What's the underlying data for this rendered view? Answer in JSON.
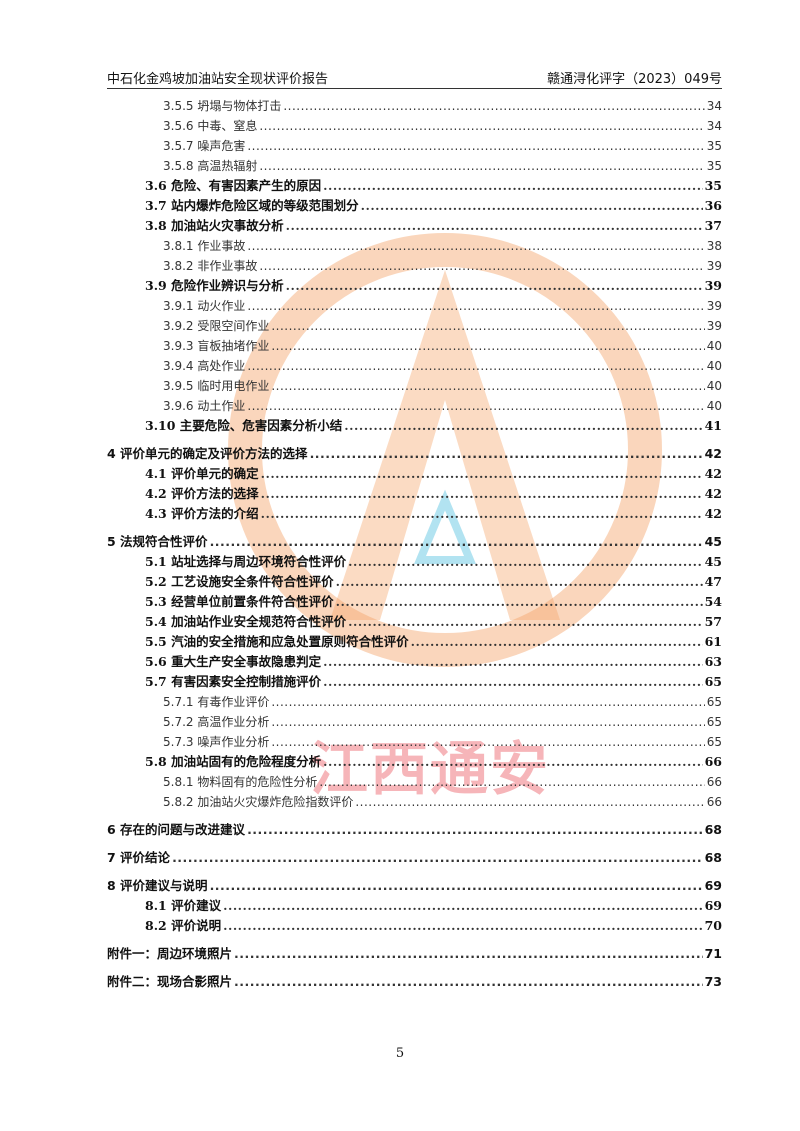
{
  "header": {
    "title": "中石化金鸡坡加油站安全现状评价报告",
    "doc_number": "赣通浔化评字（2023）049号"
  },
  "watermark": {
    "text": "江西通安",
    "ring_color": "#f5a46a",
    "text_color": "#eb5a64",
    "accent_color": "#7fd0e8"
  },
  "toc": [
    {
      "level": 3,
      "title": "3.5.5 坍塌与物体打击",
      "page": "34"
    },
    {
      "level": 3,
      "title": "3.5.6 中毒、窒息",
      "page": "34"
    },
    {
      "level": 3,
      "title": "3.5.7 噪声危害",
      "page": "35"
    },
    {
      "level": 3,
      "title": "3.5.8 高温热辐射",
      "page": "35"
    },
    {
      "level": 2,
      "title": "3.6 危险、有害因素产生的原因",
      "page": "35"
    },
    {
      "level": 2,
      "title": "3.7 站内爆炸危险区域的等级范围划分",
      "page": "36"
    },
    {
      "level": 2,
      "title": "3.8 加油站火灾事故分析",
      "page": "37"
    },
    {
      "level": 3,
      "title": "3.8.1 作业事故",
      "page": "38"
    },
    {
      "level": 3,
      "title": "3.8.2 非作业事故",
      "page": "39"
    },
    {
      "level": 2,
      "title": "3.9 危险作业辨识与分析",
      "page": "39"
    },
    {
      "level": 3,
      "title": "3.9.1 动火作业",
      "page": "39"
    },
    {
      "level": 3,
      "title": "3.9.2 受限空间作业",
      "page": "39"
    },
    {
      "level": 3,
      "title": "3.9.3 盲板抽堵作业",
      "page": "40"
    },
    {
      "level": 3,
      "title": "3.9.4 高处作业",
      "page": "40"
    },
    {
      "level": 3,
      "title": "3.9.5 临时用电作业",
      "page": "40"
    },
    {
      "level": 3,
      "title": "3.9.6 动土作业",
      "page": "40"
    },
    {
      "level": 2,
      "title": "3.10 主要危险、危害因素分析小结",
      "page": "41"
    },
    {
      "level": 1,
      "title": "4 评价单元的确定及评价方法的选择",
      "page": "42"
    },
    {
      "level": 2,
      "title": "4.1 评价单元的确定",
      "page": "42"
    },
    {
      "level": 2,
      "title": "4.2 评价方法的选择",
      "page": "42"
    },
    {
      "level": 2,
      "title": "4.3 评价方法的介绍",
      "page": "42"
    },
    {
      "level": 1,
      "title": "5 法规符合性评价",
      "page": "45"
    },
    {
      "level": 2,
      "title": "5.1 站址选择与周边环境符合性评价",
      "page": "45"
    },
    {
      "level": 2,
      "title": "5.2 工艺设施安全条件符合性评价",
      "page": "47"
    },
    {
      "level": 2,
      "title": "5.3 经营单位前置条件符合性评价",
      "page": "54"
    },
    {
      "level": 2,
      "title": "5.4 加油站作业安全规范符合性评价",
      "page": "57"
    },
    {
      "level": 2,
      "title": "5.5 汽油的安全措施和应急处置原则符合性评价",
      "page": "61"
    },
    {
      "level": 2,
      "title": "5.6 重大生产安全事故隐患判定",
      "page": "63"
    },
    {
      "level": 2,
      "title": "5.7 有害因素安全控制措施评价",
      "page": "65"
    },
    {
      "level": 3,
      "title": "5.7.1 有毒作业评价",
      "page": "65"
    },
    {
      "level": 3,
      "title": "5.7.2 高温作业分析",
      "page": "65"
    },
    {
      "level": 3,
      "title": "5.7.3 噪声作业分析",
      "page": "65"
    },
    {
      "level": 2,
      "title": "5.8 加油站固有的危险程度分析",
      "page": "66"
    },
    {
      "level": 3,
      "title": "5.8.1 物料固有的危险性分析",
      "page": "66"
    },
    {
      "level": 3,
      "title": "5.8.2 加油站火灾爆炸危险指数评价",
      "page": "66"
    },
    {
      "level": 1,
      "title": "6 存在的问题与改进建议",
      "page": "68"
    },
    {
      "level": 1,
      "title": "7 评价结论",
      "page": "68"
    },
    {
      "level": 1,
      "title": "8 评价建议与说明",
      "page": "69"
    },
    {
      "level": 2,
      "title": "8.1 评价建议",
      "page": "69"
    },
    {
      "level": 2,
      "title": "8.2 评价说明",
      "page": "70"
    },
    {
      "level": 1,
      "title": "附件一：周边环境照片",
      "page": "71"
    },
    {
      "level": 1,
      "title": "附件二：现场合影照片",
      "page": "73"
    }
  ],
  "footer": {
    "page_number": "5"
  }
}
